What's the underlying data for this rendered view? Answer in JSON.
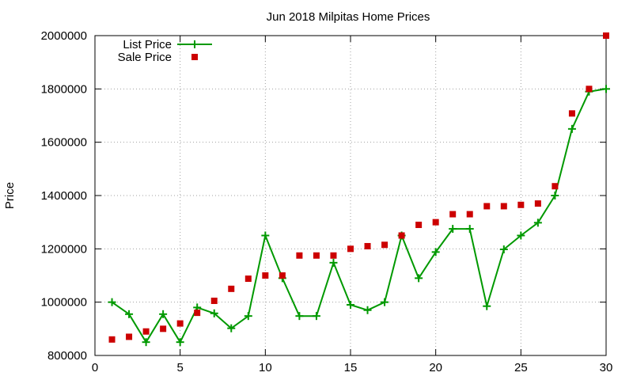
{
  "chart_data": {
    "type": "line",
    "title": "Jun 2018 Milpitas Home Prices",
    "xlabel": "",
    "ylabel": "Price",
    "xlim": [
      0,
      30
    ],
    "ylim": [
      800000,
      2000000
    ],
    "xticks": [
      0,
      5,
      10,
      15,
      20,
      25,
      30
    ],
    "yticks": [
      800000,
      1000000,
      1200000,
      1400000,
      1600000,
      1800000,
      2000000
    ],
    "grid": true,
    "legend_position": "top-left",
    "x": [
      1,
      2,
      3,
      4,
      5,
      6,
      7,
      8,
      9,
      10,
      11,
      12,
      13,
      14,
      15,
      16,
      17,
      18,
      19,
      20,
      21,
      22,
      23,
      24,
      25,
      26,
      27,
      28,
      29,
      30
    ],
    "series": [
      {
        "name": "List Price",
        "style": "line-with-plus-markers",
        "color": "#009900",
        "values": [
          1000000,
          955000,
          850000,
          955000,
          850000,
          980000,
          958000,
          902000,
          948000,
          1250000,
          1090000,
          948000,
          948000,
          1148000,
          990000,
          970000,
          1000000,
          1250000,
          1090000,
          1188000,
          1275000,
          1275000,
          985000,
          1198000,
          1250000,
          1298000,
          1400000,
          1650000,
          1790000,
          1800000
        ]
      },
      {
        "name": "Sale Price",
        "style": "square-markers",
        "color": "#cc0000",
        "values": [
          860000,
          870000,
          890000,
          900000,
          920000,
          960000,
          1005000,
          1050000,
          1088000,
          1100000,
          1100000,
          1175000,
          1175000,
          1175000,
          1200000,
          1210000,
          1215000,
          1250000,
          1290000,
          1300000,
          1330000,
          1330000,
          1360000,
          1360000,
          1365000,
          1370000,
          1435000,
          1708000,
          1800000,
          2000000
        ]
      }
    ]
  }
}
